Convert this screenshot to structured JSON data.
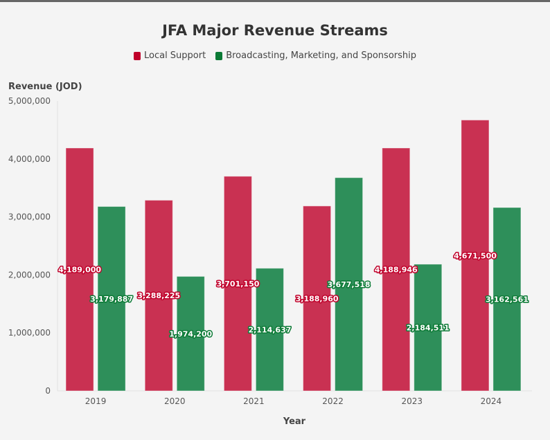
{
  "chart_data": {
    "type": "bar",
    "title": "JFA Major Revenue Streams",
    "xlabel": "Year",
    "ylabel": "Revenue (JOD)",
    "ylim": [
      0,
      5000000
    ],
    "yticks": [
      "0",
      "1,000,000",
      "2,000,000",
      "3,000,000",
      "4,000,000",
      "5,000,000"
    ],
    "yticks_values": [
      0,
      1000000,
      2000000,
      3000000,
      4000000,
      5000000
    ],
    "categories": [
      "2019",
      "2020",
      "2021",
      "2022",
      "2023",
      "2024"
    ],
    "legend_position": "top-center",
    "series": [
      {
        "name": "Local Support",
        "color": "#c93152",
        "label_color": "#c0002a",
        "values": [
          4189000,
          3288225,
          3701150,
          3188960,
          4188946,
          4671500
        ],
        "labels": [
          "4,189,000",
          "3,288,225",
          "3,701,150",
          "3,188,960",
          "4,188,946",
          "4,671,500"
        ]
      },
      {
        "name": "Broadcasting, Marketing, and Sponsorship",
        "color": "#2e8f5a",
        "label_color": "#0b7a35",
        "values": [
          3179887,
          1974200,
          2114637,
          3677518,
          2184511,
          3162561
        ],
        "labels": [
          "3,179,887",
          "1,974,200",
          "2,114,637",
          "3,677,518",
          "2,184,511",
          "3,162,561"
        ]
      }
    ]
  }
}
